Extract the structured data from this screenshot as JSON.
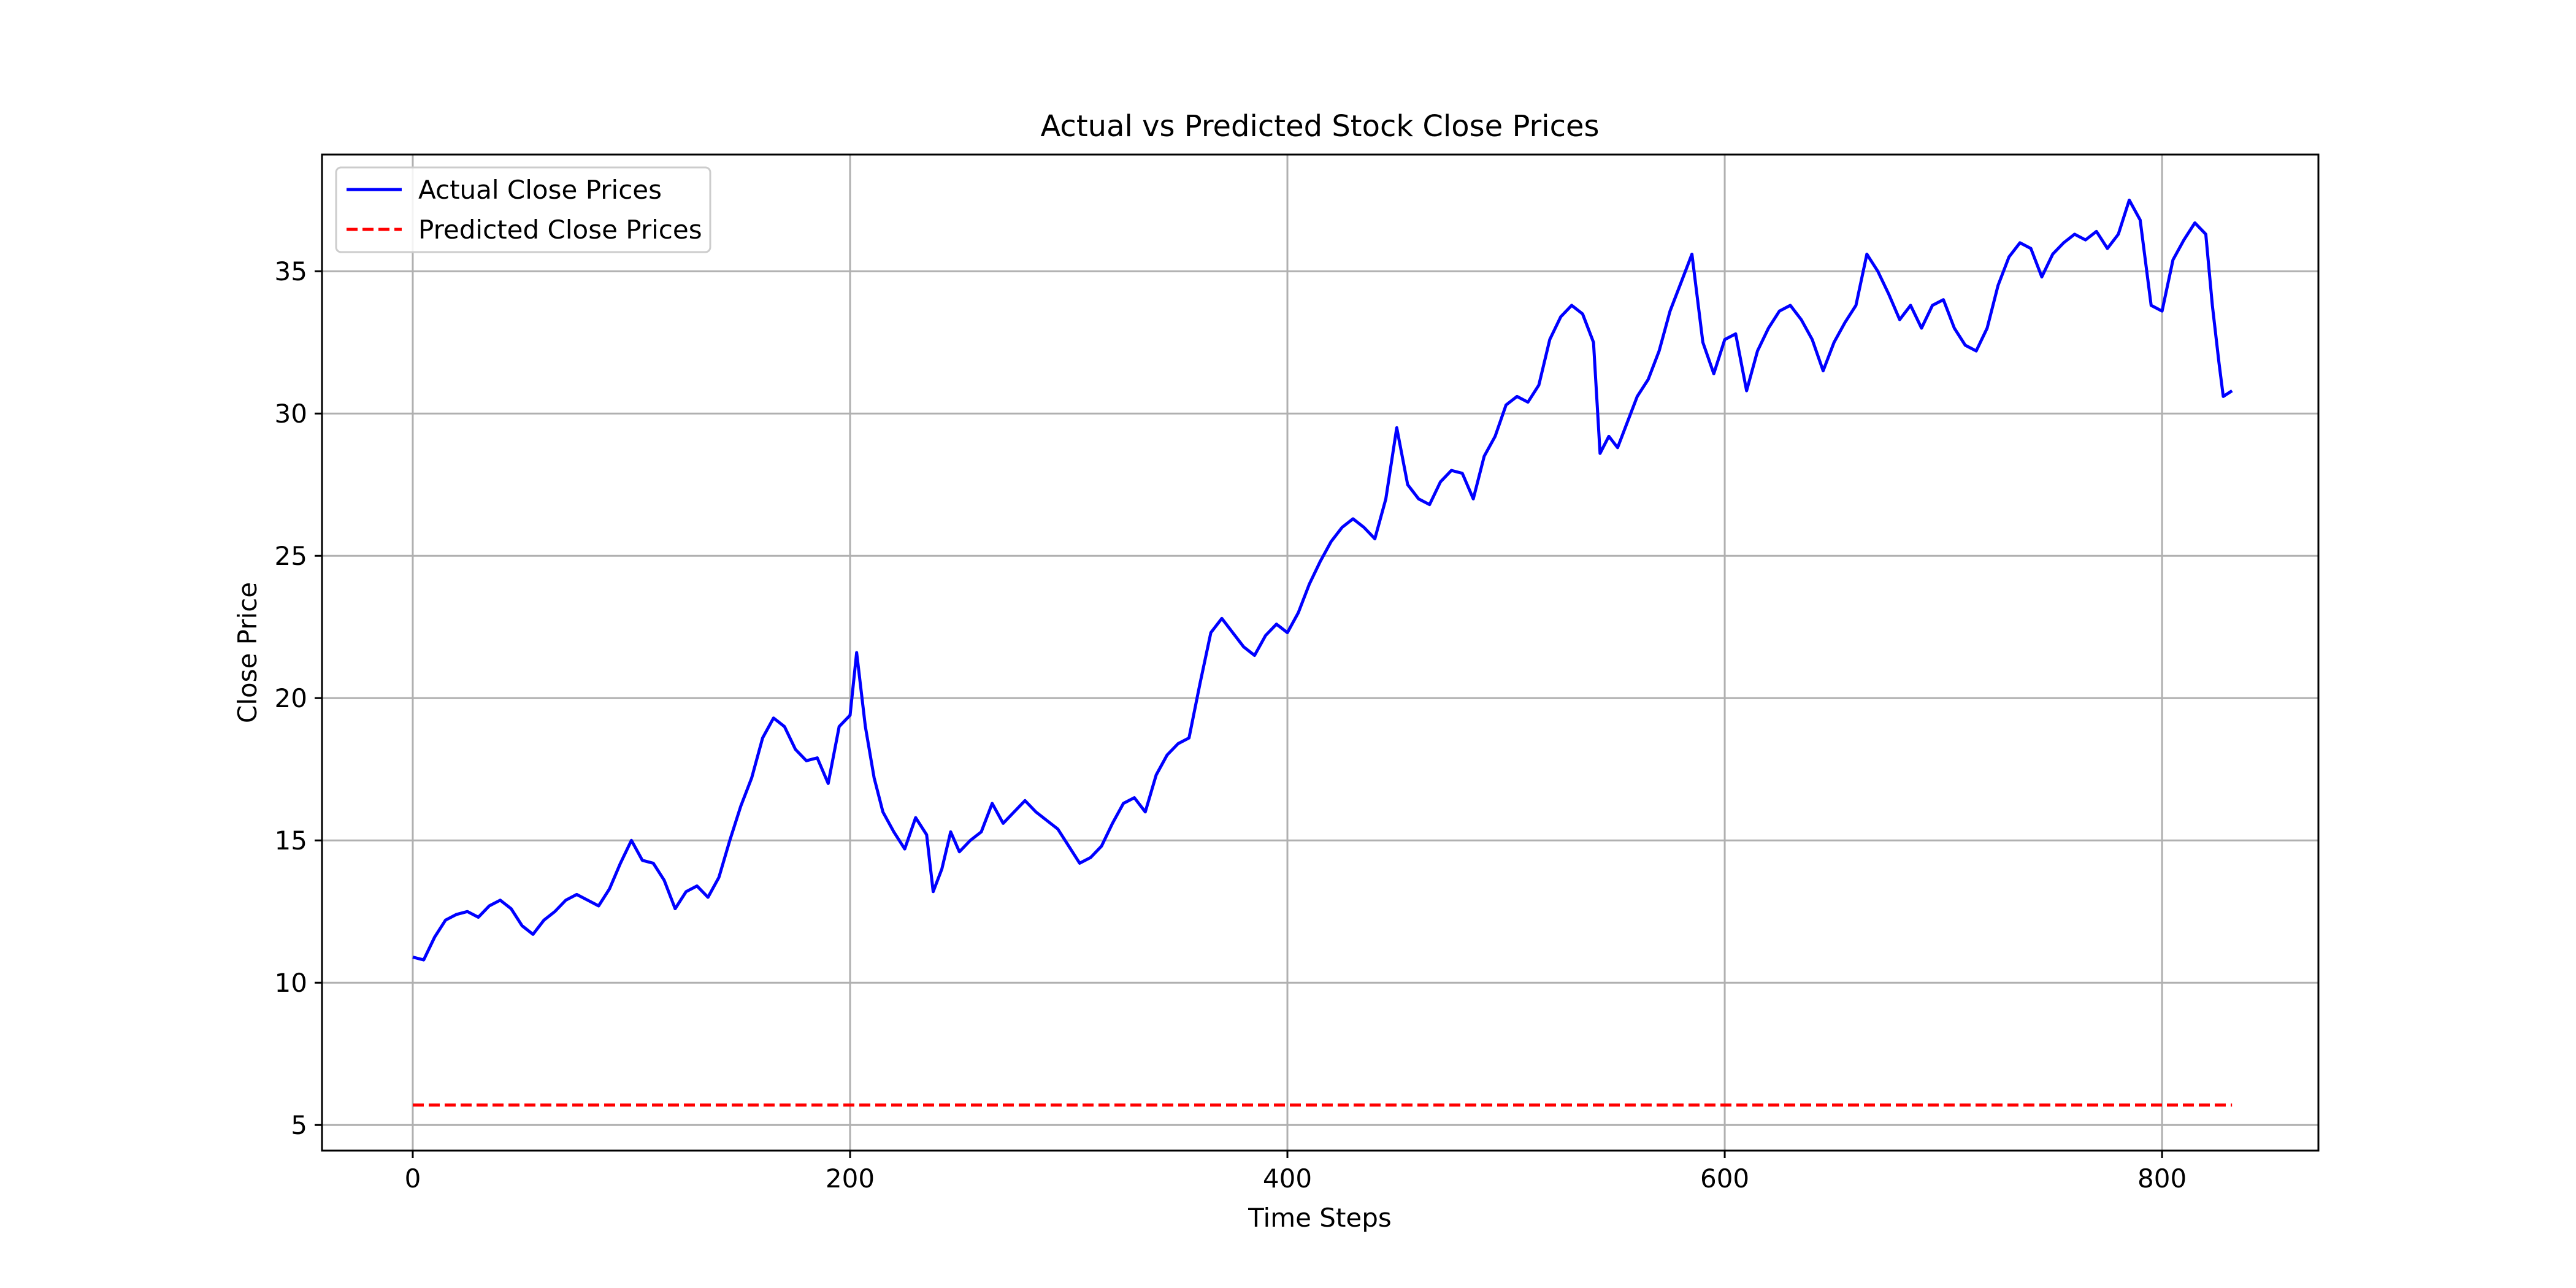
{
  "chart_data": {
    "type": "line",
    "title": "Actual vs Predicted Stock Close Prices",
    "xlabel": "Time Steps",
    "ylabel": "Close Price",
    "xlim": [
      -41.5,
      871.5
    ],
    "ylim": [
      4.1,
      39.1
    ],
    "xticks": [
      0,
      200,
      400,
      600,
      800
    ],
    "yticks": [
      5,
      10,
      15,
      20,
      25,
      30,
      35
    ],
    "grid": true,
    "legend_position": "top-left",
    "colors": {
      "actual": "#0000ff",
      "predicted": "#ff0000"
    },
    "series": [
      {
        "name": "Actual Close Prices",
        "style": "solid",
        "points": [
          [
            0,
            10.9
          ],
          [
            5,
            10.8
          ],
          [
            10,
            11.6
          ],
          [
            15,
            12.2
          ],
          [
            20,
            12.4
          ],
          [
            25,
            12.5
          ],
          [
            30,
            12.3
          ],
          [
            35,
            12.7
          ],
          [
            40,
            12.9
          ],
          [
            45,
            12.6
          ],
          [
            50,
            12.0
          ],
          [
            55,
            11.7
          ],
          [
            60,
            12.2
          ],
          [
            65,
            12.5
          ],
          [
            70,
            12.9
          ],
          [
            75,
            13.1
          ],
          [
            80,
            12.9
          ],
          [
            85,
            12.7
          ],
          [
            90,
            13.3
          ],
          [
            95,
            14.2
          ],
          [
            100,
            15.0
          ],
          [
            105,
            14.3
          ],
          [
            110,
            14.2
          ],
          [
            115,
            13.6
          ],
          [
            120,
            12.6
          ],
          [
            125,
            13.2
          ],
          [
            130,
            13.4
          ],
          [
            135,
            13.0
          ],
          [
            140,
            13.7
          ],
          [
            145,
            15.0
          ],
          [
            150,
            16.2
          ],
          [
            155,
            17.2
          ],
          [
            160,
            18.6
          ],
          [
            165,
            19.3
          ],
          [
            170,
            19.0
          ],
          [
            175,
            18.2
          ],
          [
            180,
            17.8
          ],
          [
            185,
            17.9
          ],
          [
            190,
            17.0
          ],
          [
            195,
            19.0
          ],
          [
            200,
            19.4
          ],
          [
            203,
            21.6
          ],
          [
            207,
            19.0
          ],
          [
            211,
            17.2
          ],
          [
            215,
            16.0
          ],
          [
            220,
            15.3
          ],
          [
            225,
            14.7
          ],
          [
            230,
            15.8
          ],
          [
            235,
            15.2
          ],
          [
            238,
            13.2
          ],
          [
            242,
            14.0
          ],
          [
            246,
            15.3
          ],
          [
            250,
            14.6
          ],
          [
            255,
            15.0
          ],
          [
            260,
            15.3
          ],
          [
            265,
            16.3
          ],
          [
            270,
            15.6
          ],
          [
            275,
            16.0
          ],
          [
            280,
            16.4
          ],
          [
            285,
            16.0
          ],
          [
            290,
            15.7
          ],
          [
            295,
            15.4
          ],
          [
            300,
            14.8
          ],
          [
            305,
            14.2
          ],
          [
            310,
            14.4
          ],
          [
            315,
            14.8
          ],
          [
            320,
            15.6
          ],
          [
            325,
            16.3
          ],
          [
            330,
            16.5
          ],
          [
            335,
            16.0
          ],
          [
            340,
            17.3
          ],
          [
            345,
            18.0
          ],
          [
            350,
            18.4
          ],
          [
            355,
            18.6
          ],
          [
            360,
            20.5
          ],
          [
            365,
            22.3
          ],
          [
            370,
            22.8
          ],
          [
            375,
            22.3
          ],
          [
            380,
            21.8
          ],
          [
            385,
            21.5
          ],
          [
            390,
            22.2
          ],
          [
            395,
            22.6
          ],
          [
            400,
            22.3
          ],
          [
            405,
            23.0
          ],
          [
            410,
            24.0
          ],
          [
            415,
            24.8
          ],
          [
            420,
            25.5
          ],
          [
            425,
            26.0
          ],
          [
            430,
            26.3
          ],
          [
            435,
            26.0
          ],
          [
            440,
            25.6
          ],
          [
            445,
            27.0
          ],
          [
            450,
            29.5
          ],
          [
            455,
            27.5
          ],
          [
            460,
            27.0
          ],
          [
            465,
            26.8
          ],
          [
            470,
            27.6
          ],
          [
            475,
            28.0
          ],
          [
            480,
            27.9
          ],
          [
            485,
            27.0
          ],
          [
            490,
            28.5
          ],
          [
            495,
            29.2
          ],
          [
            500,
            30.3
          ],
          [
            505,
            30.6
          ],
          [
            510,
            30.4
          ],
          [
            515,
            31.0
          ],
          [
            520,
            32.6
          ],
          [
            525,
            33.4
          ],
          [
            530,
            33.8
          ],
          [
            535,
            33.5
          ],
          [
            540,
            32.5
          ],
          [
            543,
            28.6
          ],
          [
            547,
            29.2
          ],
          [
            551,
            28.8
          ],
          [
            555,
            29.6
          ],
          [
            560,
            30.6
          ],
          [
            565,
            31.2
          ],
          [
            570,
            32.2
          ],
          [
            575,
            33.6
          ],
          [
            580,
            34.6
          ],
          [
            585,
            35.6
          ],
          [
            590,
            32.5
          ],
          [
            595,
            31.4
          ],
          [
            600,
            32.6
          ],
          [
            605,
            32.8
          ],
          [
            610,
            30.8
          ],
          [
            615,
            32.2
          ],
          [
            620,
            33.0
          ],
          [
            625,
            33.6
          ],
          [
            630,
            33.8
          ],
          [
            635,
            33.3
          ],
          [
            640,
            32.6
          ],
          [
            645,
            31.5
          ],
          [
            650,
            32.5
          ],
          [
            655,
            33.2
          ],
          [
            660,
            33.8
          ],
          [
            665,
            35.6
          ],
          [
            670,
            35.0
          ],
          [
            675,
            34.2
          ],
          [
            680,
            33.3
          ],
          [
            685,
            33.8
          ],
          [
            690,
            33.0
          ],
          [
            695,
            33.8
          ],
          [
            700,
            34.0
          ],
          [
            705,
            33.0
          ],
          [
            710,
            32.4
          ],
          [
            715,
            32.2
          ],
          [
            720,
            33.0
          ],
          [
            725,
            34.5
          ],
          [
            730,
            35.5
          ],
          [
            735,
            36.0
          ],
          [
            740,
            35.8
          ],
          [
            745,
            34.8
          ],
          [
            750,
            35.6
          ],
          [
            755,
            36.0
          ],
          [
            760,
            36.3
          ],
          [
            765,
            36.1
          ],
          [
            770,
            36.4
          ],
          [
            775,
            35.8
          ],
          [
            780,
            36.3
          ],
          [
            785,
            37.5
          ],
          [
            790,
            36.8
          ],
          [
            795,
            33.8
          ],
          [
            800,
            33.6
          ],
          [
            805,
            35.4
          ],
          [
            810,
            36.1
          ],
          [
            815,
            36.7
          ],
          [
            820,
            36.3
          ],
          [
            823,
            33.8
          ],
          [
            826,
            31.8
          ],
          [
            828,
            30.6
          ],
          [
            832,
            30.8
          ]
        ]
      },
      {
        "name": "Predicted Close Prices",
        "style": "dashed",
        "points": [
          [
            0,
            5.7
          ],
          [
            832,
            5.7
          ]
        ]
      }
    ]
  }
}
